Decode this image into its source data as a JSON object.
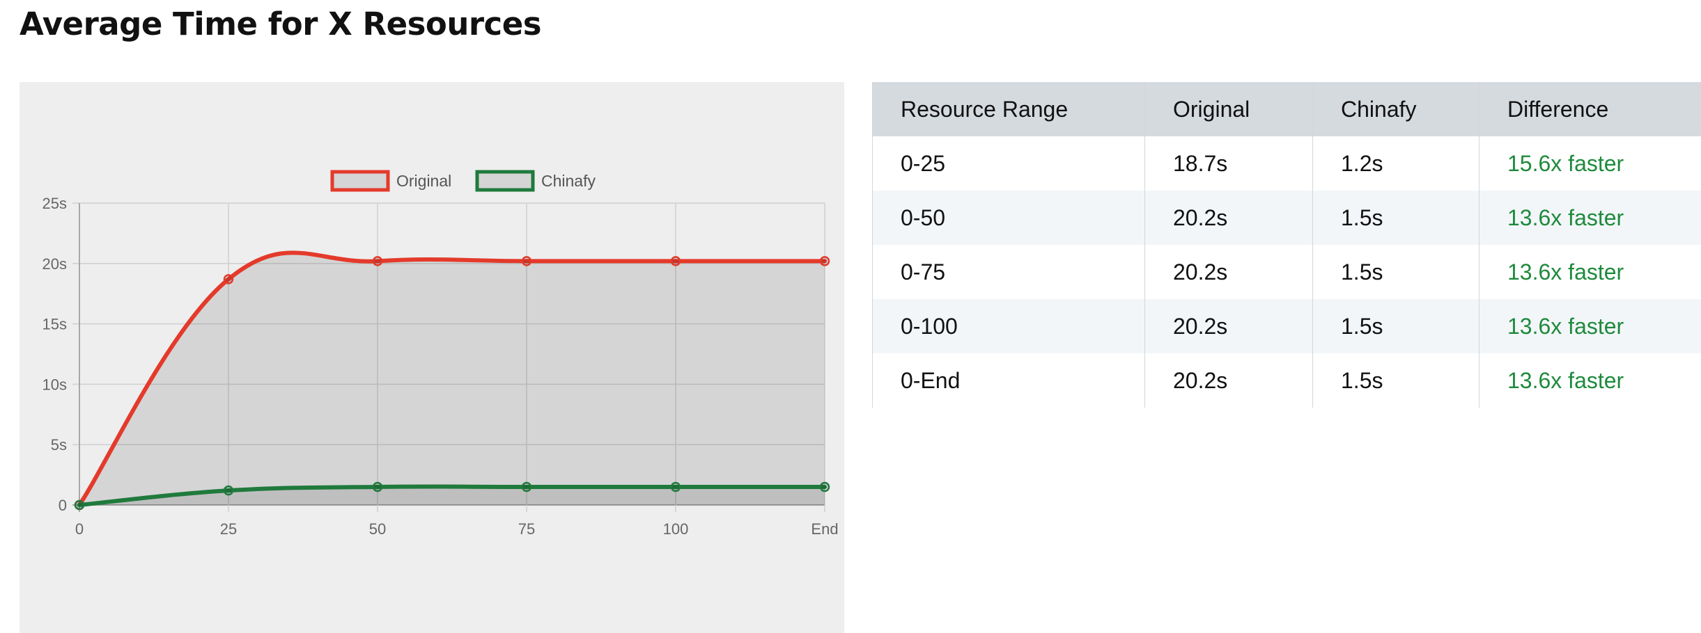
{
  "page": {
    "title": "Average Time for X Resources"
  },
  "chart_data": {
    "type": "line",
    "title": "",
    "xlabel": "",
    "ylabel": "",
    "categories": [
      "0",
      "25",
      "50",
      "75",
      "100",
      "End"
    ],
    "y_ticks": [
      "0",
      "5s",
      "10s",
      "15s",
      "20s",
      "25s"
    ],
    "ylim": [
      0,
      25
    ],
    "grid": true,
    "legend": "top-center",
    "area_fill": true,
    "smooth": true,
    "series": [
      {
        "name": "Original",
        "color": "#e43a2b",
        "values": [
          0,
          18.7,
          20.2,
          20.2,
          20.2,
          20.2
        ]
      },
      {
        "name": "Chinafy",
        "color": "#1f7a3c",
        "values": [
          0,
          1.2,
          1.5,
          1.5,
          1.5,
          1.5
        ]
      }
    ]
  },
  "table": {
    "headers": [
      "Resource Range",
      "Original",
      "Chinafy",
      "Difference"
    ],
    "rows": [
      [
        "0-25",
        "18.7s",
        "1.2s",
        "15.6x faster"
      ],
      [
        "0-50",
        "20.2s",
        "1.5s",
        "13.6x faster"
      ],
      [
        "0-75",
        "20.2s",
        "1.5s",
        "13.6x faster"
      ],
      [
        "0-100",
        "20.2s",
        "1.5s",
        "13.6x faster"
      ],
      [
        "0-End",
        "20.2s",
        "1.5s",
        "13.6x faster"
      ]
    ]
  }
}
